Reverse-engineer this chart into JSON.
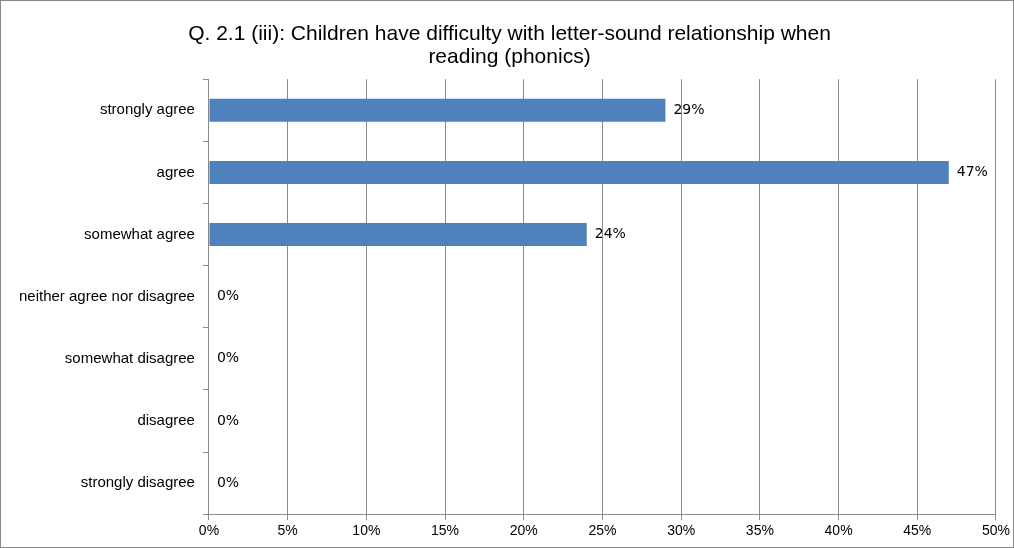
{
  "chart_data": {
    "type": "bar",
    "orientation": "horizontal",
    "title": "Q. 2.1 (iii): Children have difficulty with letter-sound relationship when reading (phonics)",
    "categories": [
      "strongly agree",
      "agree",
      "somewhat agree",
      "neither agree nor disagree",
      "somewhat disagree",
      "disagree",
      "strongly disagree"
    ],
    "values": [
      29,
      47,
      24,
      0,
      0,
      0,
      0
    ],
    "value_labels": [
      "29%",
      "47%",
      "24%",
      "0%",
      "0%",
      "0%",
      "0%"
    ],
    "color": "#4f81bd",
    "xlim": [
      0,
      50
    ],
    "xticks": [
      {
        "value": 0,
        "label": "0%"
      },
      {
        "value": 5,
        "label": "5%"
      },
      {
        "value": 10,
        "label": "10%"
      },
      {
        "value": 15,
        "label": "15%"
      },
      {
        "value": 20,
        "label": "20%"
      },
      {
        "value": 25,
        "label": "25%"
      },
      {
        "value": 30,
        "label": "30%"
      },
      {
        "value": 35,
        "label": "35%"
      },
      {
        "value": 40,
        "label": "40%"
      },
      {
        "value": 45,
        "label": "45%"
      },
      {
        "value": 50,
        "label": "50%"
      }
    ],
    "grid": "x",
    "legend": false
  }
}
